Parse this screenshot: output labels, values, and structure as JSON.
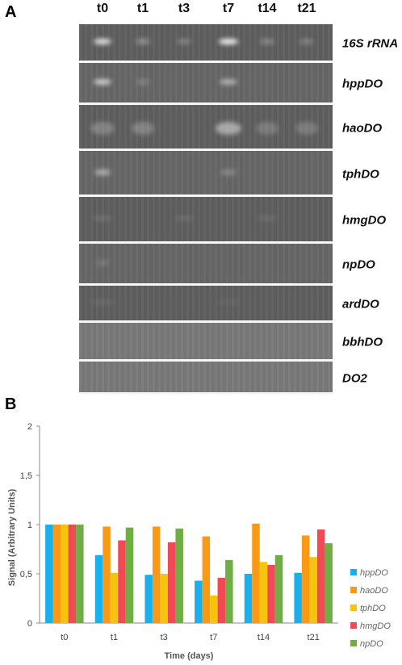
{
  "panel_a": {
    "label": "A",
    "lanes": [
      "t0",
      "t1",
      "t3",
      "t7",
      "t14",
      "t21"
    ],
    "genes": [
      "16S rRNA",
      "hppDO",
      "haoDO",
      "tphDO",
      "hmgDO",
      "npDO",
      "ardDO",
      "bbhDO",
      "DO2"
    ]
  },
  "panel_b": {
    "label": "B"
  },
  "colors": {
    "hppDO": "#1ab0ee",
    "haoDO": "#f89a14",
    "tphDO": "#f8c30c",
    "hmgDO": "#f04a54",
    "npDO": "#6fae45"
  },
  "chart_data": {
    "type": "bar",
    "categories": [
      "t0",
      "t1",
      "t3",
      "t7",
      "t14",
      "t21"
    ],
    "series": [
      {
        "name": "hppDO",
        "values": [
          1.0,
          0.69,
          0.49,
          0.43,
          0.5,
          0.51
        ]
      },
      {
        "name": "haoDO",
        "values": [
          1.0,
          0.98,
          0.98,
          0.88,
          1.01,
          0.89
        ]
      },
      {
        "name": "tphDO",
        "values": [
          1.0,
          0.51,
          0.5,
          0.28,
          0.62,
          0.67
        ]
      },
      {
        "name": "hmgDO",
        "values": [
          1.0,
          0.84,
          0.82,
          0.46,
          0.59,
          0.95
        ]
      },
      {
        "name": "npDO",
        "values": [
          1.0,
          0.97,
          0.96,
          0.64,
          0.69,
          0.81
        ]
      }
    ],
    "xlabel": "Time (days)",
    "ylabel": "Signal (Arbitrary Units)",
    "ylim": [
      0,
      2
    ],
    "yticks": [
      "0",
      "0,5",
      "1",
      "1,5",
      "2"
    ],
    "legend": "right",
    "grid": false
  }
}
